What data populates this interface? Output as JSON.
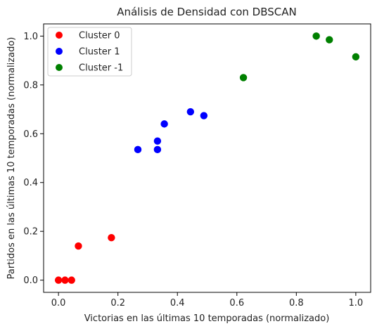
{
  "chart_data": {
    "type": "scatter",
    "title": "Análisis de Densidad con DBSCAN",
    "xlabel": "Victorias en las últimas 10 temporadas (normalizado)",
    "ylabel": "Partidos en las últimas 10 temporadas (normalizado)",
    "xlim": [
      -0.05,
      1.05
    ],
    "ylim": [
      -0.05,
      1.05
    ],
    "xticks": [
      "0.0",
      "0.2",
      "0.4",
      "0.6",
      "0.8",
      "1.0"
    ],
    "yticks": [
      "0.0",
      "0.2",
      "0.4",
      "0.6",
      "0.8",
      "1.0"
    ],
    "grid": false,
    "legend_position": "top-left",
    "series": [
      {
        "name": "Cluster 0",
        "color": "#ff0000",
        "points": [
          {
            "x": 0.0,
            "y": 0.0
          },
          {
            "x": 0.022,
            "y": 0.0
          },
          {
            "x": 0.044,
            "y": 0.0
          },
          {
            "x": 0.067,
            "y": 0.14
          },
          {
            "x": 0.178,
            "y": 0.174
          }
        ]
      },
      {
        "name": "Cluster 1",
        "color": "#0000ff",
        "points": [
          {
            "x": 0.267,
            "y": 0.535
          },
          {
            "x": 0.333,
            "y": 0.535
          },
          {
            "x": 0.333,
            "y": 0.57
          },
          {
            "x": 0.356,
            "y": 0.64
          },
          {
            "x": 0.444,
            "y": 0.69
          },
          {
            "x": 0.489,
            "y": 0.674
          }
        ]
      },
      {
        "name": "Cluster -1",
        "color": "#008000",
        "points": [
          {
            "x": 0.622,
            "y": 0.83
          },
          {
            "x": 0.867,
            "y": 1.0
          },
          {
            "x": 0.911,
            "y": 0.985
          },
          {
            "x": 1.0,
            "y": 0.915
          }
        ]
      }
    ]
  }
}
